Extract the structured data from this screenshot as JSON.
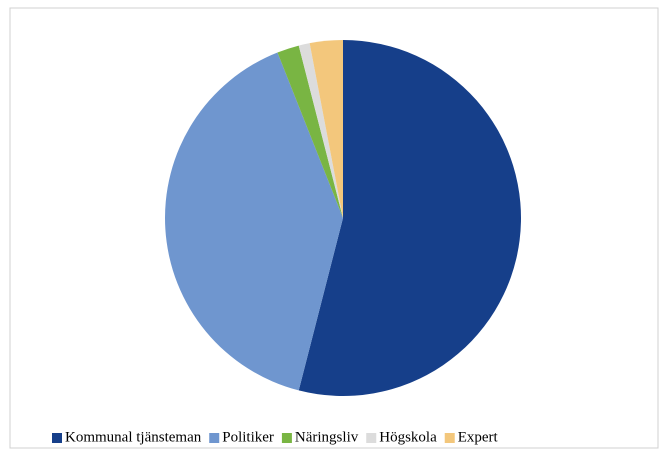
{
  "chart_data": {
    "type": "pie",
    "categories": [
      "Kommunal tjänsteman",
      "Politiker",
      "Näringsliv",
      "Högskola",
      "Expert"
    ],
    "values": [
      54,
      40,
      2,
      1,
      3
    ],
    "colors": [
      "#163f8a",
      "#6f96cf",
      "#79b543",
      "#dcdcdc",
      "#f3c77c"
    ],
    "legend": "bottom"
  }
}
